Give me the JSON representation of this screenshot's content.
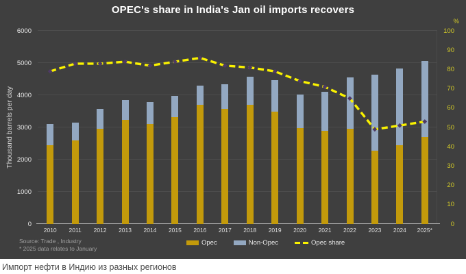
{
  "caption": "Импорт нефти в Индию из разных регионов",
  "footer": {
    "source_line1": "Source: Trade , Industry",
    "source_line2": "* 2025 data relates to January"
  },
  "legend": [
    {
      "label": "Opec",
      "swatch": "bar",
      "color": "#C39A0B"
    },
    {
      "label": "Non-Opec",
      "swatch": "bar",
      "color": "#93A8C1"
    },
    {
      "label": "Opec share",
      "swatch": "dash",
      "color": "#FAF200"
    }
  ],
  "colors": {
    "background": "#3F3F3F",
    "opec_bar": "#C39A0B",
    "non_opec_bar": "#93A8C1",
    "share_line": "#FAF200",
    "marker": "#4E3A66",
    "gridline": "#4D4D4D",
    "axis_line": "#ABABAB",
    "left_tick_text": "#E8E8E8",
    "right_tick_text": "#D2CA28",
    "title_text": "#FFFFFF"
  },
  "chart_data": {
    "type": "stacked-bar+line",
    "title": "OPEC's share in India's Jan oil imports recovers",
    "ylabel_left": "Thousand barrels per day",
    "categories": [
      "2010",
      "2011",
      "2012",
      "2013",
      "2014",
      "2015",
      "2016",
      "2017",
      "2018",
      "2019",
      "2020",
      "2021",
      "2022",
      "2023",
      "2024",
      "2025*"
    ],
    "series": [
      {
        "name": "Opec",
        "type": "bar",
        "axis": "left",
        "color": "#C39A0B",
        "values": [
          2450,
          2600,
          2950,
          3230,
          3100,
          3330,
          3700,
          3580,
          3700,
          3500,
          2980,
          2900,
          2950,
          2280,
          2450,
          2700
        ]
      },
      {
        "name": "Non-Opec",
        "type": "bar",
        "axis": "left",
        "color": "#93A8C1",
        "values": [
          650,
          550,
          620,
          620,
          690,
          650,
          600,
          760,
          880,
          960,
          1050,
          1200,
          1600,
          2350,
          2380,
          2360
        ]
      },
      {
        "name": "Opec share",
        "type": "line",
        "axis": "right",
        "color": "#FAF200",
        "marker_color": "#4E3A66",
        "values": [
          79,
          83,
          83,
          84,
          82,
          84,
          86,
          82,
          81,
          79,
          74,
          71,
          65,
          49,
          51,
          53
        ]
      }
    ],
    "totals": [
      3100,
      3150,
      3570,
      3850,
      3790,
      3980,
      4300,
      4340,
      4580,
      4460,
      4030,
      4100,
      4550,
      4630,
      4830,
      5060
    ],
    "left_axis": {
      "min": 0,
      "max": 6000,
      "ticks": [
        0,
        1000,
        2000,
        3000,
        4000,
        5000,
        6000
      ]
    },
    "right_axis": {
      "min": 0,
      "max": 100,
      "unit": "%",
      "ticks": [
        0,
        10,
        20,
        30,
        40,
        50,
        60,
        70,
        80,
        90,
        100
      ]
    },
    "grid": "horizontal",
    "legend_position": "bottom-center",
    "stacked": true
  }
}
